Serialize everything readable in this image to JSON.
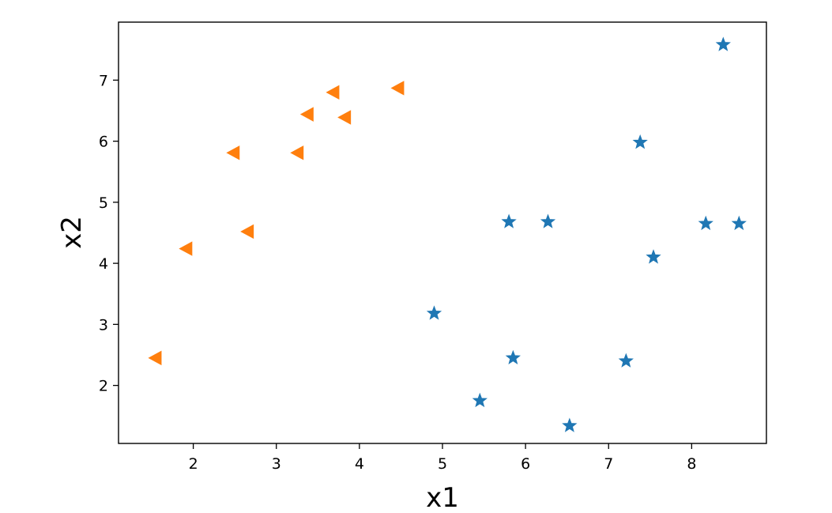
{
  "chart_data": {
    "type": "scatter",
    "title": "",
    "xlabel": "x1",
    "ylabel": "x2",
    "xlim": [
      1.1,
      8.9
    ],
    "ylim": [
      1.05,
      7.95
    ],
    "xticks": [
      2,
      3,
      4,
      5,
      6,
      7,
      8
    ],
    "yticks": [
      2,
      3,
      4,
      5,
      6,
      7
    ],
    "grid": false,
    "legend": "none",
    "series": [
      {
        "marker": "star",
        "color": "#1f77b4",
        "points": [
          [
            8.38,
            7.58
          ],
          [
            7.38,
            5.98
          ],
          [
            5.8,
            4.68
          ],
          [
            6.27,
            4.68
          ],
          [
            8.17,
            4.65
          ],
          [
            8.57,
            4.65
          ],
          [
            7.54,
            4.1
          ],
          [
            4.9,
            3.18
          ],
          [
            5.85,
            2.45
          ],
          [
            7.21,
            2.4
          ],
          [
            5.45,
            1.75
          ],
          [
            6.53,
            1.34
          ]
        ]
      },
      {
        "marker": "triangle-left",
        "color": "#ff7f0e",
        "points": [
          [
            4.47,
            6.87
          ],
          [
            3.69,
            6.8
          ],
          [
            3.38,
            6.44
          ],
          [
            3.83,
            6.39
          ],
          [
            2.49,
            5.81
          ],
          [
            3.26,
            5.81
          ],
          [
            2.66,
            4.52
          ],
          [
            1.92,
            4.24
          ],
          [
            1.55,
            2.45
          ]
        ]
      }
    ]
  }
}
